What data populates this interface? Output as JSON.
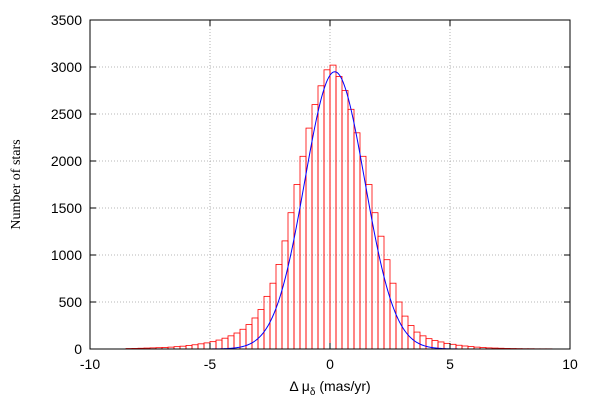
{
  "chart_data": {
    "type": "bar",
    "xlabel_prefix": "Δ μ",
    "xlabel_subscript": "δ",
    "xlabel_suffix": " (mas/yr)",
    "ylabel": "Number of stars",
    "xlim": [
      -10,
      10
    ],
    "ylim": [
      0,
      3500
    ],
    "grid": true,
    "x_ticks": [
      -10,
      -5,
      0,
      5,
      10
    ],
    "y_ticks": [
      0,
      500,
      1000,
      1500,
      2000,
      2500,
      3000,
      3500
    ],
    "bin_width": 0.25,
    "bin_centers": [
      -8.375,
      -8.125,
      -7.875,
      -7.625,
      -7.375,
      -7.125,
      -6.875,
      -6.625,
      -6.375,
      -6.125,
      -5.875,
      -5.625,
      -5.375,
      -5.125,
      -4.875,
      -4.625,
      -4.375,
      -4.125,
      -3.875,
      -3.625,
      -3.375,
      -3.125,
      -2.875,
      -2.625,
      -2.375,
      -2.125,
      -1.875,
      -1.625,
      -1.375,
      -1.125,
      -0.875,
      -0.625,
      -0.375,
      -0.125,
      0.125,
      0.375,
      0.625,
      0.875,
      1.125,
      1.375,
      1.625,
      1.875,
      2.125,
      2.375,
      2.625,
      2.875,
      3.125,
      3.375,
      3.625,
      3.875,
      4.125,
      4.375,
      4.625,
      4.875,
      5.125,
      5.375,
      5.625,
      5.875,
      6.125,
      6.375,
      6.625,
      6.875,
      7.125,
      7.375,
      7.625,
      7.875,
      8.125,
      8.375,
      8.625,
      8.875,
      9.125,
      9.375,
      9.625
    ],
    "counts": [
      5,
      6,
      8,
      10,
      12,
      14,
      17,
      20,
      25,
      30,
      38,
      45,
      55,
      65,
      78,
      95,
      115,
      140,
      170,
      210,
      260,
      330,
      420,
      560,
      700,
      900,
      1150,
      1450,
      1750,
      2050,
      2350,
      2600,
      2800,
      2970,
      3020,
      2900,
      2750,
      2550,
      2300,
      2050,
      1750,
      1450,
      1200,
      950,
      700,
      500,
      350,
      250,
      180,
      140,
      110,
      90,
      75,
      60,
      50,
      40,
      32,
      26,
      20,
      16,
      12,
      10,
      8,
      6,
      5,
      4,
      3,
      3,
      2,
      2,
      2,
      1,
      1
    ],
    "series": [
      {
        "type": "histogram",
        "color": "#ff0000"
      },
      {
        "type": "line",
        "function": "gaussian",
        "amplitude": 2950,
        "mean": 0.2,
        "sigma": 1.25,
        "color": "#0000ff"
      }
    ]
  }
}
